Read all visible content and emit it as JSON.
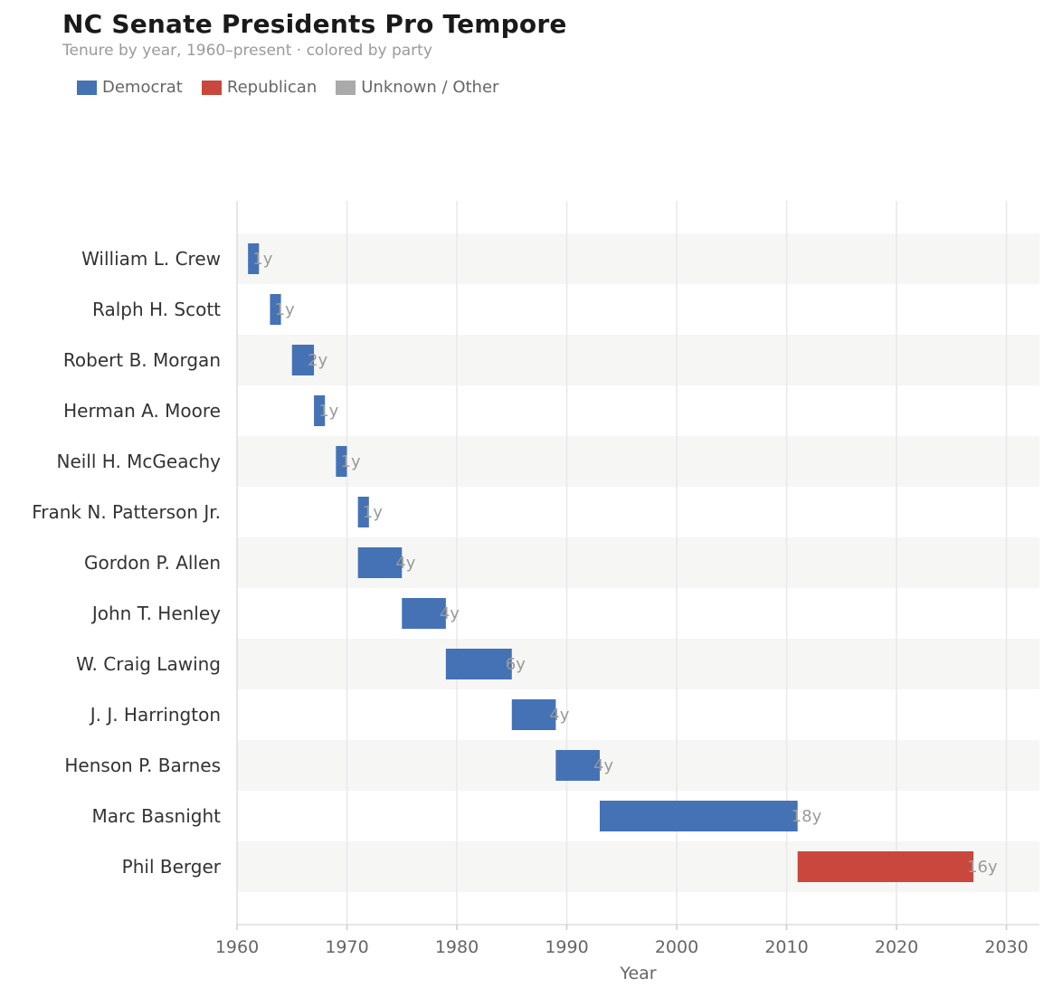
{
  "chart_data": {
    "type": "bar",
    "orientation": "horizontal-timeline",
    "title": "NC Senate Presidents Pro Tempore",
    "subtitle": "Tenure by year, 1960–present  ·  colored by party",
    "xlabel": "Year",
    "ylabel": "",
    "xlim": [
      1960,
      2033
    ],
    "xticks": [
      1960,
      1970,
      1980,
      1990,
      2000,
      2010,
      2020,
      2030
    ],
    "grid": true,
    "legend_position": "top-left",
    "legend": [
      {
        "label": "Democrat",
        "color": "#4472b4"
      },
      {
        "label": "Republican",
        "color": "#c9473c"
      },
      {
        "label": "Unknown / Other",
        "color": "#aaaaaa"
      }
    ],
    "series": [
      {
        "name": "William L. Crew",
        "party": "Democrat",
        "start": 1961,
        "end": 1962,
        "label": "1y"
      },
      {
        "name": "Ralph H. Scott",
        "party": "Democrat",
        "start": 1963,
        "end": 1964,
        "label": "1y"
      },
      {
        "name": "Robert B. Morgan",
        "party": "Democrat",
        "start": 1965,
        "end": 1967,
        "label": "2y"
      },
      {
        "name": "Herman A. Moore",
        "party": "Democrat",
        "start": 1967,
        "end": 1968,
        "label": "1y"
      },
      {
        "name": "Neill H. McGeachy",
        "party": "Democrat",
        "start": 1969,
        "end": 1970,
        "label": "1y"
      },
      {
        "name": "Frank N. Patterson Jr.",
        "party": "Democrat",
        "start": 1971,
        "end": 1972,
        "label": "1y"
      },
      {
        "name": "Gordon P. Allen",
        "party": "Democrat",
        "start": 1971,
        "end": 1975,
        "label": "4y"
      },
      {
        "name": "John T. Henley",
        "party": "Democrat",
        "start": 1975,
        "end": 1979,
        "label": "4y"
      },
      {
        "name": "W. Craig Lawing",
        "party": "Democrat",
        "start": 1979,
        "end": 1985,
        "label": "6y"
      },
      {
        "name": "J. J. Harrington",
        "party": "Democrat",
        "start": 1985,
        "end": 1989,
        "label": "4y"
      },
      {
        "name": "Henson P. Barnes",
        "party": "Democrat",
        "start": 1989,
        "end": 1993,
        "label": "4y"
      },
      {
        "name": "Marc Basnight",
        "party": "Democrat",
        "start": 1993,
        "end": 2011,
        "label": "18y"
      },
      {
        "name": "Phil Berger",
        "party": "Republican",
        "start": 2011,
        "end": 2027,
        "label": "16y"
      }
    ]
  }
}
